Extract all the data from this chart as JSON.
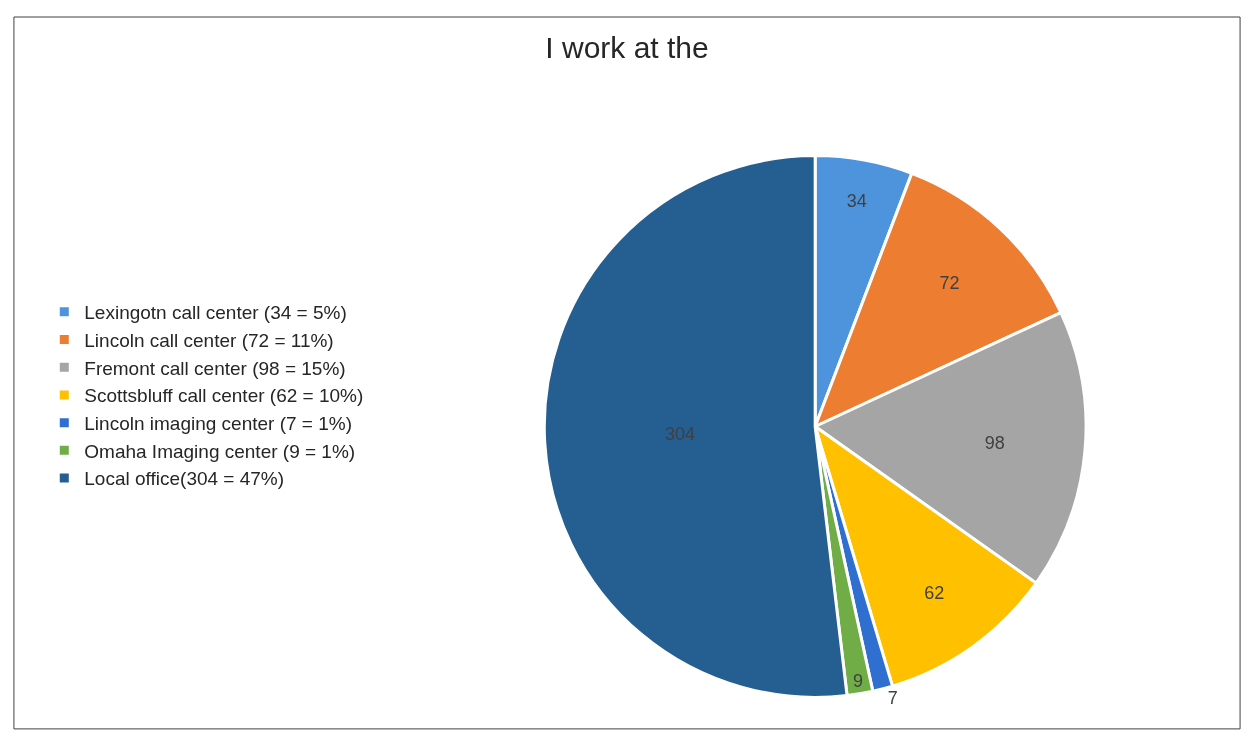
{
  "chart_data": {
    "type": "pie",
    "title": "I work at the",
    "categories": [
      "Lexingotn call center (34 = 5%)",
      "Lincoln call center (72 = 11%)",
      "Fremont call center (98 = 15%)",
      "Scottsbluff call center (62 = 10%)",
      "Lincoln imaging center (7 = 1%)",
      "Omaha Imaging center (9 = 1%)",
      "Local office(304 = 47%)"
    ],
    "values": [
      34,
      72,
      98,
      62,
      7,
      9,
      304
    ],
    "colors": [
      "#4e94dc",
      "#ed7d31",
      "#a5a5a5",
      "#ffc000",
      "#2f6fd0",
      "#70ad47",
      "#255e91"
    ],
    "data_labels": true,
    "legend": "left"
  }
}
